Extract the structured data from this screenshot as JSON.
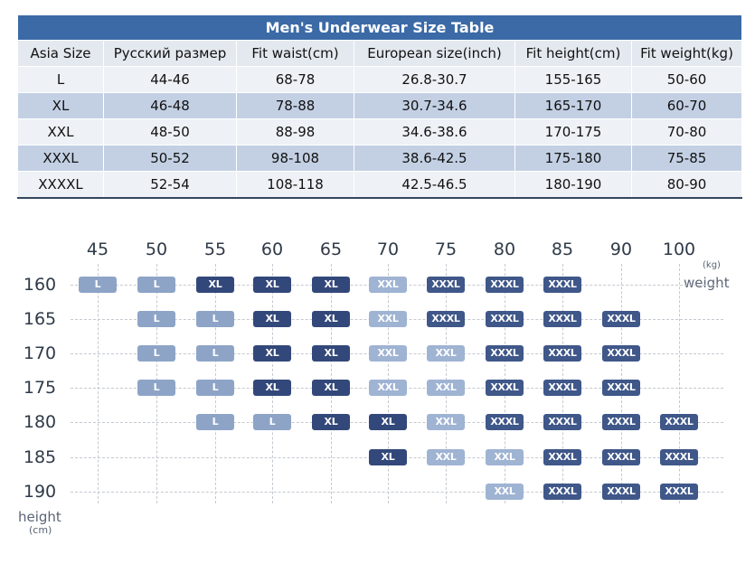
{
  "table": {
    "title": "Men's Underwear Size Table",
    "headers": [
      "Asia Size",
      "Русский размер",
      "Fit waist(cm)",
      "European size(inch)",
      "Fit height(cm)",
      "Fit weight(kg)"
    ],
    "rows": [
      [
        "L",
        "44-46",
        "68-78",
        "26.8-30.7",
        "155-165",
        "50-60"
      ],
      [
        "XL",
        "46-48",
        "78-88",
        "30.7-34.6",
        "165-170",
        "60-70"
      ],
      [
        "XXL",
        "48-50",
        "88-98",
        "34.6-38.6",
        "170-175",
        "70-80"
      ],
      [
        "XXXL",
        "50-52",
        "98-108",
        "38.6-42.5",
        "175-180",
        "75-85"
      ],
      [
        "XXXXL",
        "52-54",
        "108-118",
        "42.5-46.5",
        "180-190",
        "80-90"
      ]
    ]
  },
  "chart": {
    "weights": [
      "45",
      "50",
      "55",
      "60",
      "65",
      "70",
      "75",
      "80",
      "85",
      "90",
      "100"
    ],
    "heights": [
      "160",
      "165",
      "170",
      "175",
      "180",
      "185",
      "190"
    ],
    "weight_unit": "(kg)",
    "weight_label": "weight",
    "height_label": "height",
    "height_unit": "(cm)",
    "size_colors": {
      "L": "#8da4c7",
      "XL": "#33487a",
      "XXL": "#9fb3d3",
      "XXXL": "#3f5789"
    },
    "grid": [
      [
        "L",
        "L",
        "XL",
        "XL",
        "XL",
        "XXL",
        "XXXL",
        "XXXL",
        "XXXL",
        "",
        ""
      ],
      [
        "",
        "L",
        "L",
        "XL",
        "XL",
        "XXL",
        "XXXL",
        "XXXL",
        "XXXL",
        "XXXL",
        ""
      ],
      [
        "",
        "L",
        "L",
        "XL",
        "XL",
        "XXL",
        "XXL",
        "XXXL",
        "XXXL",
        "XXXL",
        ""
      ],
      [
        "",
        "L",
        "L",
        "XL",
        "XL",
        "XXL",
        "XXL",
        "XXXL",
        "XXXL",
        "XXXL",
        ""
      ],
      [
        "",
        "",
        "L",
        "L",
        "XL",
        "XL",
        "XXL",
        "XXXL",
        "XXXL",
        "XXXL",
        "XXXL"
      ],
      [
        "",
        "",
        "",
        "",
        "",
        "XL",
        "XXL",
        "XXL",
        "XXXL",
        "XXXL",
        "XXXL"
      ],
      [
        "",
        "",
        "",
        "",
        "",
        "",
        "",
        "XXL",
        "XXXL",
        "XXXL",
        "XXXL"
      ]
    ]
  }
}
